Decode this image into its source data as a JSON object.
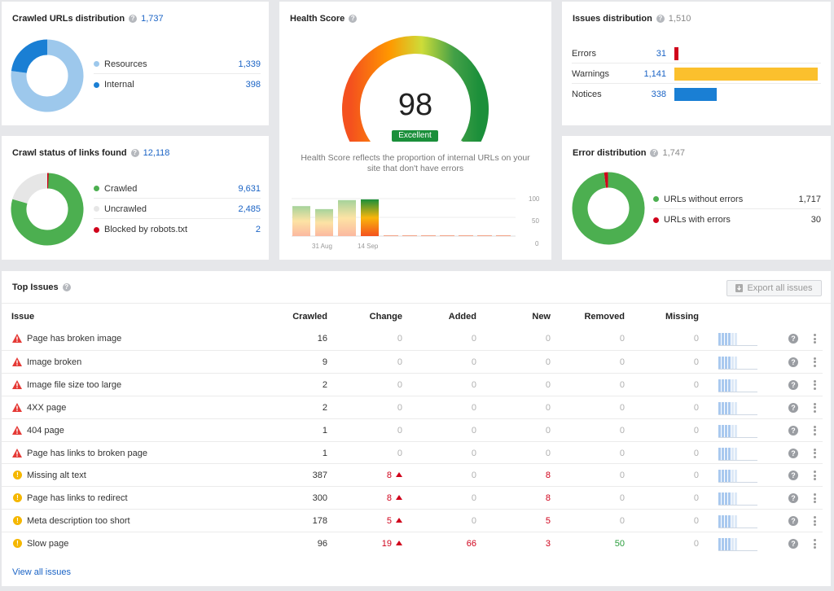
{
  "crawled_urls": {
    "title": "Crawled URLs distribution",
    "total": "1,737",
    "items": [
      {
        "label": "Resources",
        "value": "1,339",
        "color": "#9dc8ec"
      },
      {
        "label": "Internal",
        "value": "398",
        "color": "#1a7fd4"
      }
    ],
    "shares": [
      0.771,
      0.229
    ]
  },
  "crawl_status": {
    "title": "Crawl status of links found",
    "total": "12,118",
    "items": [
      {
        "label": "Crawled",
        "value": "9,631",
        "color": "#4caf50"
      },
      {
        "label": "Uncrawled",
        "value": "2,485",
        "color": "#e6e6e6"
      },
      {
        "label": "Blocked by robots.txt",
        "value": "2",
        "color": "#d0021b"
      }
    ],
    "shares": [
      0.795,
      0.205,
      0.0008
    ]
  },
  "health": {
    "title": "Health Score",
    "score": "98",
    "badge": "Excellent",
    "description_line1": "Health Score reflects the proportion of internal URLs on your",
    "description_line2": "site that don't have errors",
    "score_fraction": 0.98,
    "bars": [
      0.8,
      0.72,
      0.96,
      0.98
    ],
    "y_ticks": [
      "100",
      "50",
      "0"
    ],
    "x_ticks": [
      "31 Aug",
      "14 Sep"
    ]
  },
  "issues_distribution": {
    "title": "Issues distribution",
    "total": "1,510",
    "items": [
      {
        "label": "Errors",
        "value": "31",
        "color": "#d0021b",
        "share": 0.027
      },
      {
        "label": "Warnings",
        "value": "1,141",
        "color": "#fbc02d",
        "share": 1.0
      },
      {
        "label": "Notices",
        "value": "338",
        "color": "#1a7fd4",
        "share": 0.296
      }
    ]
  },
  "error_distribution": {
    "title": "Error distribution",
    "total": "1,747",
    "items": [
      {
        "label": "URLs without errors",
        "value": "1,717",
        "color": "#4caf50"
      },
      {
        "label": "URLs with errors",
        "value": "30",
        "color": "#d0021b"
      }
    ],
    "shares": [
      0.983,
      0.017
    ]
  },
  "top_issues": {
    "title": "Top Issues",
    "export_label": "Export all issues",
    "view_all": "View all issues",
    "columns": [
      "Issue",
      "Crawled",
      "Change",
      "Added",
      "New",
      "Removed",
      "Missing"
    ],
    "rows": [
      {
        "type": "error",
        "issue": "Page has broken image",
        "crawled": "16",
        "change": "0",
        "change_up": false,
        "added": "0",
        "new": "0",
        "removed": "0",
        "missing": "0"
      },
      {
        "type": "error",
        "issue": "Image broken",
        "crawled": "9",
        "change": "0",
        "change_up": false,
        "added": "0",
        "new": "0",
        "removed": "0",
        "missing": "0"
      },
      {
        "type": "error",
        "issue": "Image file size too large",
        "crawled": "2",
        "change": "0",
        "change_up": false,
        "added": "0",
        "new": "0",
        "removed": "0",
        "missing": "0"
      },
      {
        "type": "error",
        "issue": "4XX page",
        "crawled": "2",
        "change": "0",
        "change_up": false,
        "added": "0",
        "new": "0",
        "removed": "0",
        "missing": "0"
      },
      {
        "type": "error",
        "issue": "404 page",
        "crawled": "1",
        "change": "0",
        "change_up": false,
        "added": "0",
        "new": "0",
        "removed": "0",
        "missing": "0"
      },
      {
        "type": "error",
        "issue": "Page has links to broken page",
        "crawled": "1",
        "change": "0",
        "change_up": false,
        "added": "0",
        "new": "0",
        "removed": "0",
        "missing": "0"
      },
      {
        "type": "warning",
        "issue": "Missing alt text",
        "crawled": "387",
        "change": "8",
        "change_up": true,
        "added": "0",
        "new": "8",
        "removed": "0",
        "missing": "0"
      },
      {
        "type": "warning",
        "issue": "Page has links to redirect",
        "crawled": "300",
        "change": "8",
        "change_up": true,
        "added": "0",
        "new": "8",
        "removed": "0",
        "missing": "0"
      },
      {
        "type": "warning",
        "issue": "Meta description too short",
        "crawled": "178",
        "change": "5",
        "change_up": true,
        "added": "0",
        "new": "5",
        "removed": "0",
        "missing": "0"
      },
      {
        "type": "warning",
        "issue": "Slow page",
        "crawled": "96",
        "change": "19",
        "change_up": true,
        "added": "66",
        "new": "3",
        "removed": "50",
        "missing": "0"
      }
    ]
  }
}
